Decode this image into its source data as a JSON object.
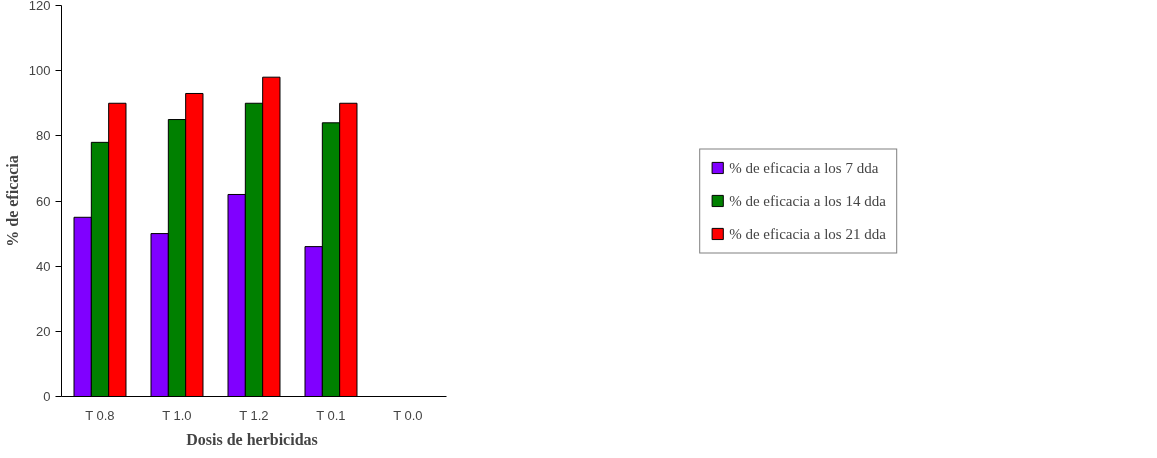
{
  "chart_data": {
    "type": "bar",
    "xlabel": "Dosis de  herbicidas",
    "ylabel": "% de eficacia",
    "categories": [
      "T 0.8",
      "T 1.0",
      "T 1.2",
      "T 0.1",
      "T 0.0"
    ],
    "series": [
      {
        "name": "% de eficacia a los 7 dda",
        "color": "#8000ff",
        "values": [
          55,
          50,
          62,
          46,
          null
        ]
      },
      {
        "name": "% de eficacia a los 14 dda",
        "color": "#008000",
        "values": [
          78,
          85,
          90,
          84,
          null
        ]
      },
      {
        "name": "% de eficacia a los 21 dda",
        "color": "#ff0000",
        "values": [
          90,
          93,
          98,
          90,
          null
        ]
      }
    ],
    "ylim": [
      0,
      120
    ],
    "yticks": [
      0,
      20,
      40,
      60,
      80,
      100,
      120
    ],
    "grid": false,
    "legend": "right"
  }
}
